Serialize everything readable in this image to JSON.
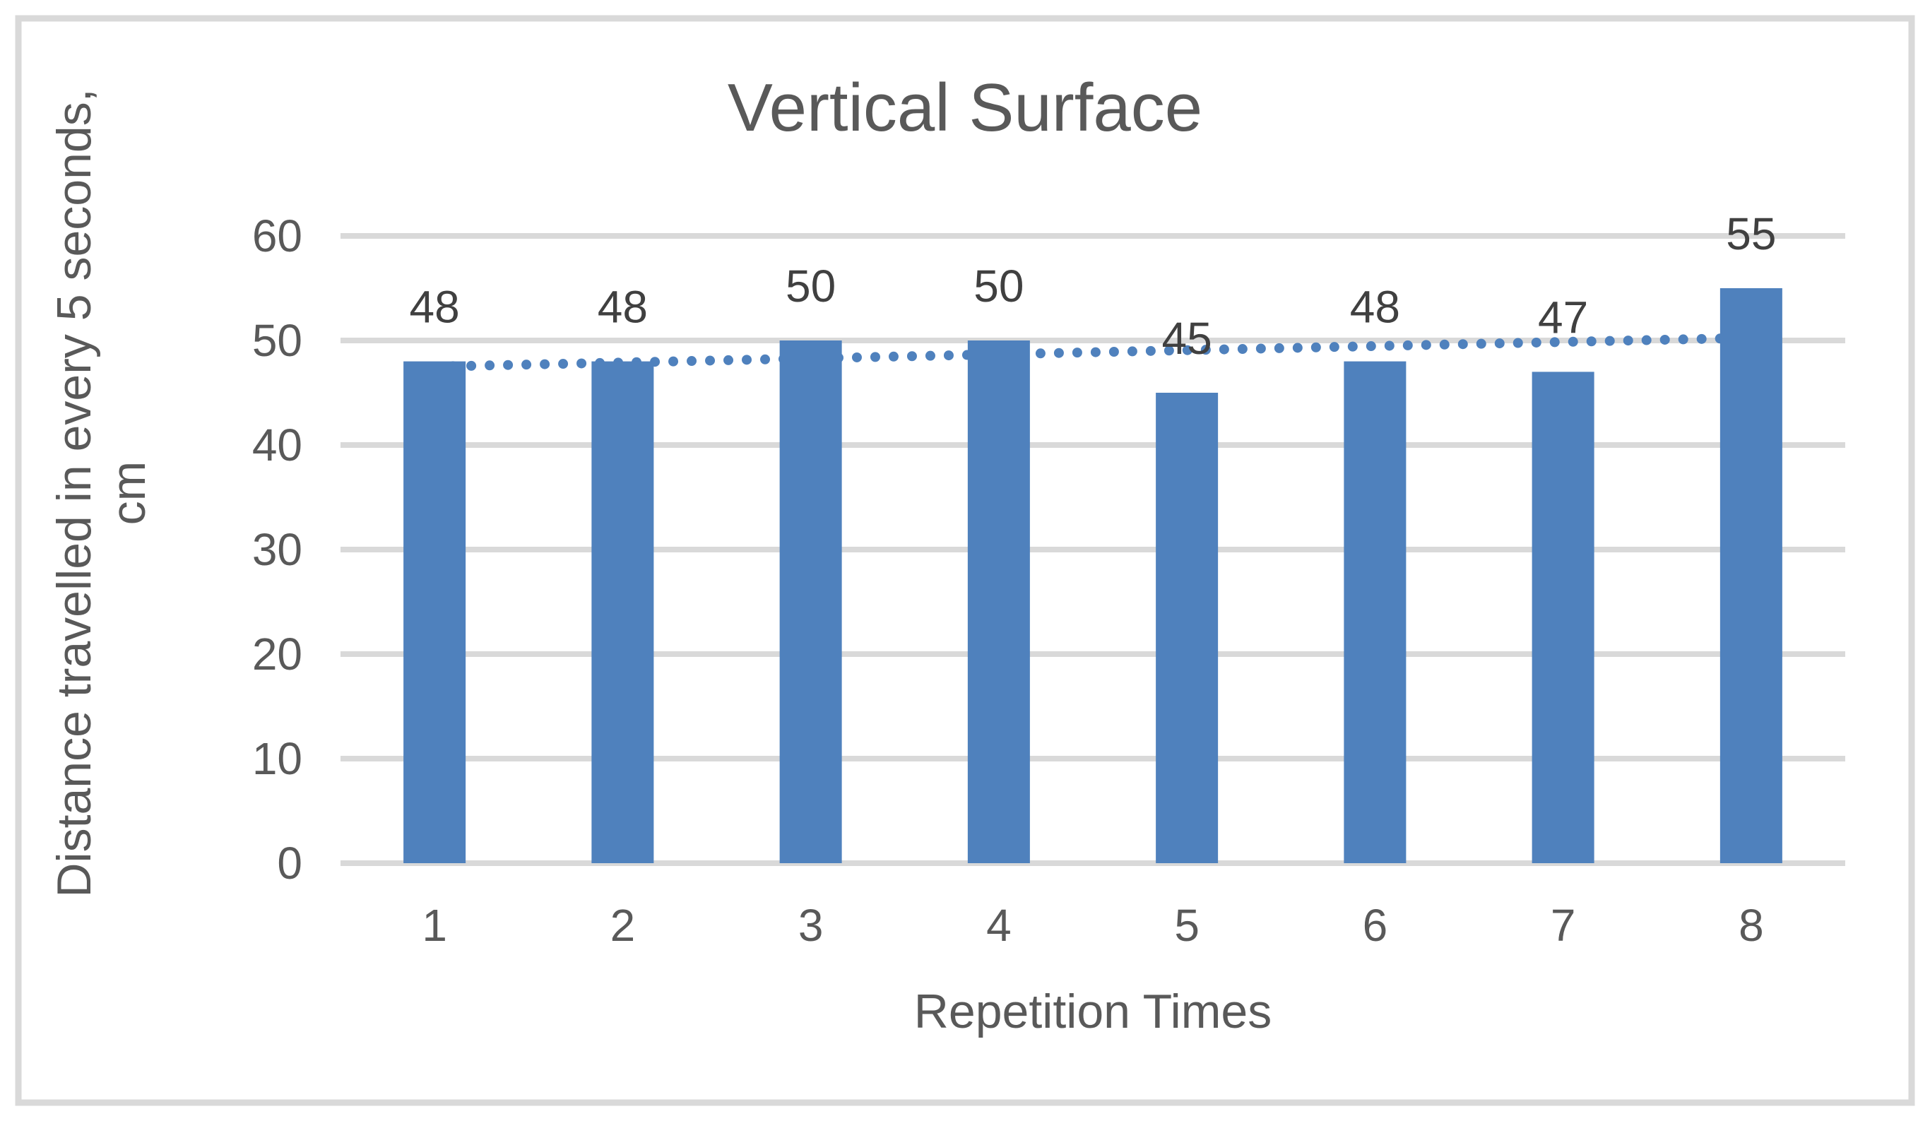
{
  "chart_data": {
    "type": "bar",
    "title": "Vertical Surface",
    "categories": [
      "1",
      "2",
      "3",
      "4",
      "5",
      "6",
      "7",
      "8"
    ],
    "values": [
      48,
      48,
      50,
      50,
      45,
      48,
      47,
      55
    ],
    "data_labels": [
      "48",
      "48",
      "50",
      "50",
      "45",
      "48",
      "47",
      "55"
    ],
    "xlabel": "Repetition Times",
    "ylabel": "Distance travelled in every 5 seconds, cm",
    "ylabel_lines": [
      "Distance travelled in every 5 seconds,",
      "cm"
    ],
    "ylim": [
      0,
      60
    ],
    "yticks": [
      0,
      10,
      20,
      30,
      40,
      50,
      60
    ],
    "grid": "horizontal",
    "legend": "none",
    "trendline": {
      "type": "linear",
      "style": "dotted",
      "color": "#4F81BD"
    },
    "colors": {
      "bar": "#4F81BD",
      "gridline": "#D9D9D9",
      "axis_text": "#595959",
      "title_text": "#595959",
      "data_label_text": "#404040",
      "border": "#D9D9D9",
      "background": "#FFFFFF"
    }
  }
}
